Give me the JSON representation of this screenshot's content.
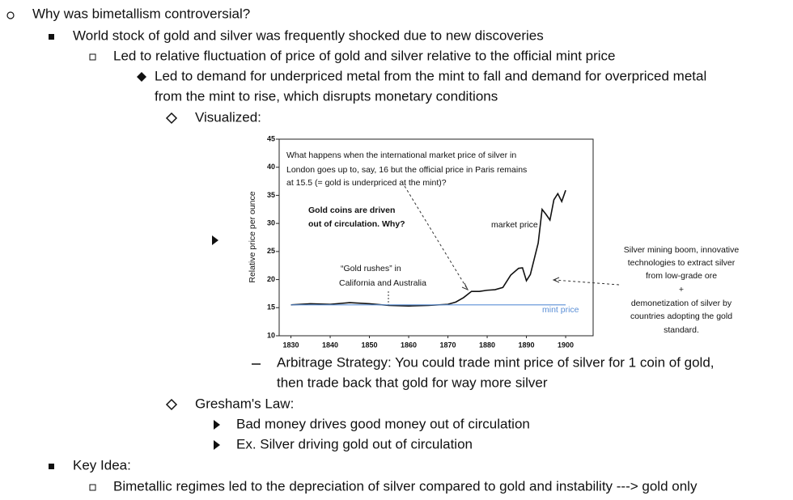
{
  "lines": [
    "Why was bimetallism controversial?",
    "World stock of gold and silver was frequently shocked due to new discoveries",
    "Led to relative fluctuation of price of gold and silver relative to the official mint price",
    "Led to demand for underpriced metal from the mint to fall and demand for overpriced metal",
    "from the mint to rise, which disrupts monetary conditions",
    "Visualized:",
    "Arbitrage Strategy: You could trade mint price of silver for 1 coin of gold,",
    "then trade back that gold for way more silver",
    "Gresham's Law:",
    "Bad money drives good money out of circulation",
    "Ex. Silver driving gold out of circulation",
    "Key Idea:",
    "Bimetallic regimes led to the depreciation of silver compared to gold and instability ---> gold only"
  ],
  "chart_data": {
    "type": "line",
    "y_label": "Relative price per ounce",
    "x": [
      1830,
      1835,
      1840,
      1845,
      1850,
      1855,
      1860,
      1865,
      1870,
      1872,
      1874,
      1876,
      1878,
      1880,
      1882,
      1884,
      1886,
      1888,
      1889,
      1890,
      1891,
      1892,
      1893,
      1894,
      1895,
      1896,
      1897,
      1898,
      1899,
      1900
    ],
    "series": [
      {
        "name": "market price",
        "color": "#111111",
        "values": [
          15.5,
          15.7,
          15.6,
          15.9,
          15.7,
          15.4,
          15.3,
          15.4,
          15.6,
          16,
          16.8,
          17.9,
          17.9,
          18.1,
          18.2,
          18.6,
          20.8,
          22,
          22.1,
          19.8,
          20.9,
          23.7,
          26.5,
          32.5,
          31.6,
          30.6,
          34.2,
          35.3,
          33.9,
          35.9
        ]
      },
      {
        "name": "mint price",
        "color": "#5b8fd6",
        "values": [
          15.5,
          15.5,
          15.5,
          15.5,
          15.5,
          15.5,
          15.5,
          15.5,
          15.5,
          15.5,
          15.5,
          15.5,
          15.5,
          15.5,
          15.5,
          15.5,
          15.5,
          15.5,
          15.5,
          15.5,
          15.5,
          15.5,
          15.5,
          15.5,
          15.5,
          15.5,
          15.5,
          15.5,
          15.5,
          15.5
        ]
      }
    ],
    "xlim": [
      1827,
      1907
    ],
    "ylim": [
      10,
      45
    ],
    "xticks": [
      1830,
      1840,
      1850,
      1860,
      1870,
      1880,
      1890,
      1900
    ],
    "yticks": [
      10,
      15,
      20,
      25,
      30,
      35,
      40,
      45
    ],
    "annotations": [
      "What happens when the international market price of silver in",
      "London goes up to, say, 16 but the official price in Paris remains",
      "at 15.5 (= gold is underpriced at the mint)?",
      "Gold coins are driven",
      "out of circulation. Why?",
      "“Gold rushes” in",
      "California and Australia",
      "Silver mining boom, innovative",
      "technologies to extract silver",
      "from low-grade ore",
      "+",
      "demonetization of silver by",
      "countries adopting the gold",
      "standard."
    ]
  }
}
